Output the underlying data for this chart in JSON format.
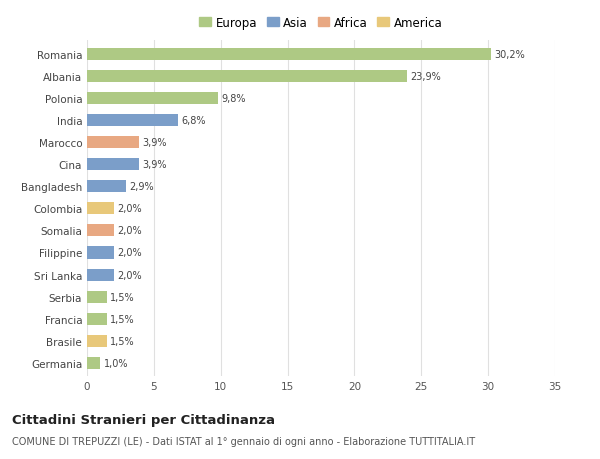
{
  "categories": [
    "Romania",
    "Albania",
    "Polonia",
    "India",
    "Marocco",
    "Cina",
    "Bangladesh",
    "Colombia",
    "Somalia",
    "Filippine",
    "Sri Lanka",
    "Serbia",
    "Francia",
    "Brasile",
    "Germania"
  ],
  "values": [
    30.2,
    23.9,
    9.8,
    6.8,
    3.9,
    3.9,
    2.9,
    2.0,
    2.0,
    2.0,
    2.0,
    1.5,
    1.5,
    1.5,
    1.0
  ],
  "labels": [
    "30,2%",
    "23,9%",
    "9,8%",
    "6,8%",
    "3,9%",
    "3,9%",
    "2,9%",
    "2,0%",
    "2,0%",
    "2,0%",
    "2,0%",
    "1,5%",
    "1,5%",
    "1,5%",
    "1,0%"
  ],
  "colors": [
    "#aec984",
    "#aec984",
    "#aec984",
    "#7b9ec9",
    "#e8a882",
    "#7b9ec9",
    "#7b9ec9",
    "#e8c87a",
    "#e8a882",
    "#7b9ec9",
    "#7b9ec9",
    "#aec984",
    "#aec984",
    "#e8c87a",
    "#aec984"
  ],
  "legend_labels": [
    "Europa",
    "Asia",
    "Africa",
    "America"
  ],
  "legend_colors": [
    "#aec984",
    "#7b9ec9",
    "#e8a882",
    "#e8c87a"
  ],
  "title": "Cittadini Stranieri per Cittadinanza",
  "subtitle": "COMUNE DI TREPUZZI (LE) - Dati ISTAT al 1° gennaio di ogni anno - Elaborazione TUTTITALIA.IT",
  "xlim": [
    0,
    35
  ],
  "xticks": [
    0,
    5,
    10,
    15,
    20,
    25,
    30,
    35
  ],
  "bg_color": "#ffffff",
  "plot_bg_color": "#ffffff",
  "grid_color": "#e0e0e0",
  "bar_height": 0.55
}
